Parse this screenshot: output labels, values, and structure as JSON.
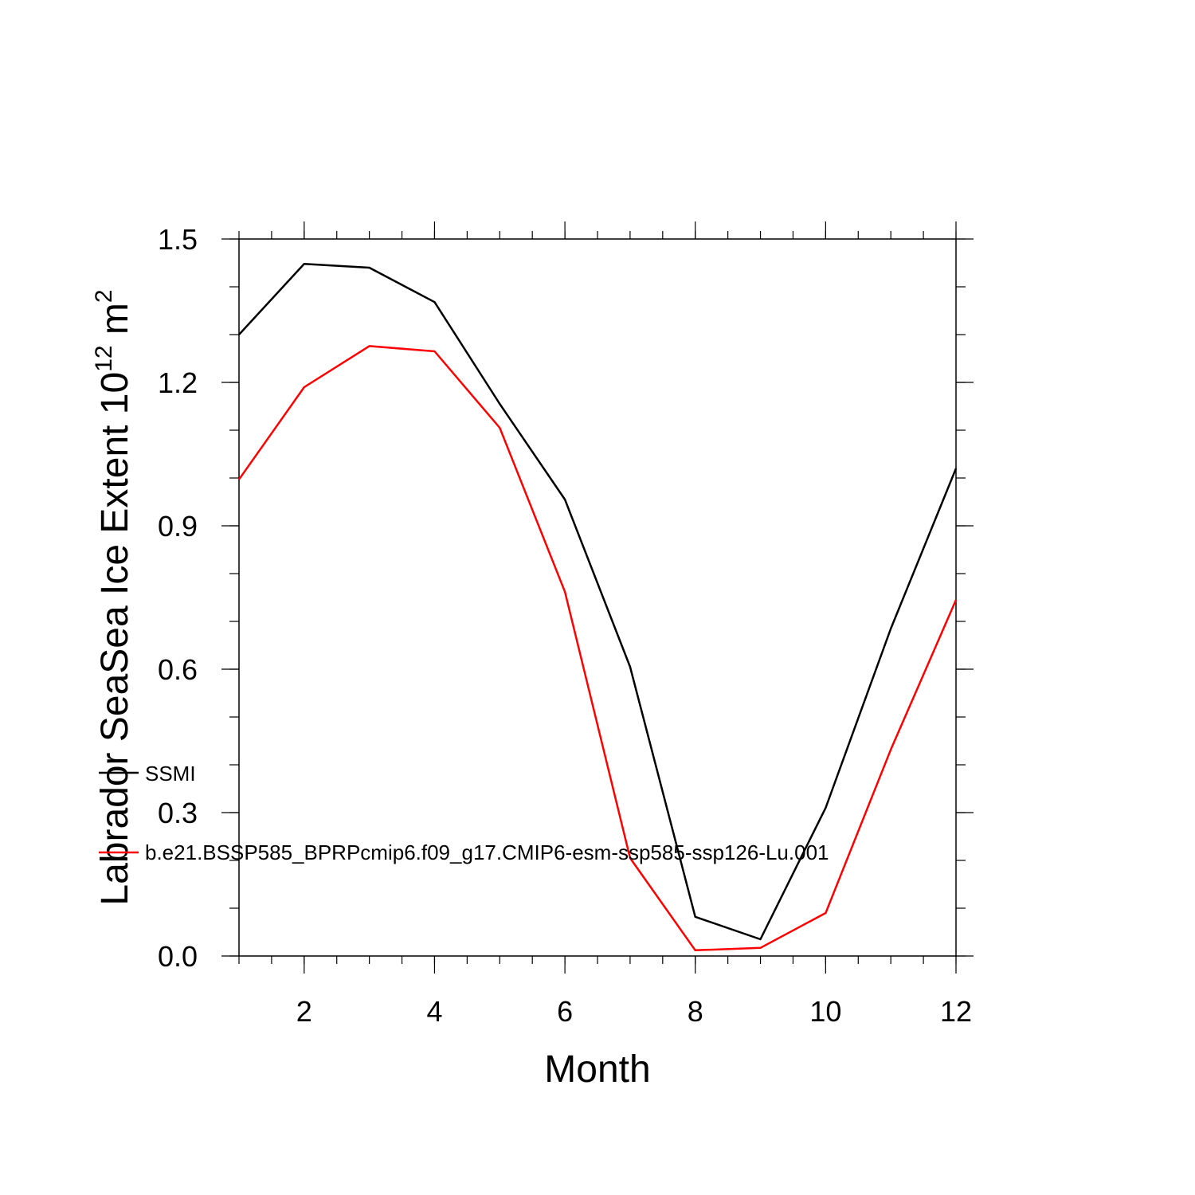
{
  "chart_data": {
    "type": "line",
    "title": "",
    "xlabel": "Month",
    "ylabel_main": "Labrador SeaSea Ice Extent 10",
    "ylabel_sup": "12",
    "ylabel_unit": " m",
    "ylabel_unit_sup": "2",
    "xlim": [
      1,
      12
    ],
    "ylim": [
      0,
      1.5
    ],
    "x_ticks": [
      2,
      4,
      6,
      8,
      10,
      12
    ],
    "x_tick_labels": [
      "2",
      "4",
      "6",
      "8",
      "10",
      "12"
    ],
    "y_ticks": [
      0,
      0.3,
      0.6,
      0.9,
      1.2,
      1.5
    ],
    "y_tick_labels": [
      "0.0",
      "0.3",
      "0.6",
      "0.9",
      "1.2",
      "1.5"
    ],
    "grid": false,
    "legend_position": "left-bottom",
    "x": [
      1,
      2,
      3,
      4,
      5,
      6,
      7,
      8,
      9,
      10,
      11,
      12
    ],
    "series": [
      {
        "name": "SSMI",
        "color": "#000000",
        "values": [
          1.3,
          1.448,
          1.44,
          1.368,
          1.155,
          0.955,
          0.605,
          0.082,
          0.035,
          0.31,
          0.685,
          1.02
        ]
      },
      {
        "name": "b.e21.BSSP585_BPRPcmip6.f09_g17.CMIP6-esm-ssp585-ssp126-Lu.001",
        "color": "#ff0000",
        "values": [
          0.997,
          1.19,
          1.276,
          1.265,
          1.105,
          0.762,
          0.205,
          0.012,
          0.017,
          0.09,
          0.432,
          0.745
        ]
      }
    ]
  }
}
